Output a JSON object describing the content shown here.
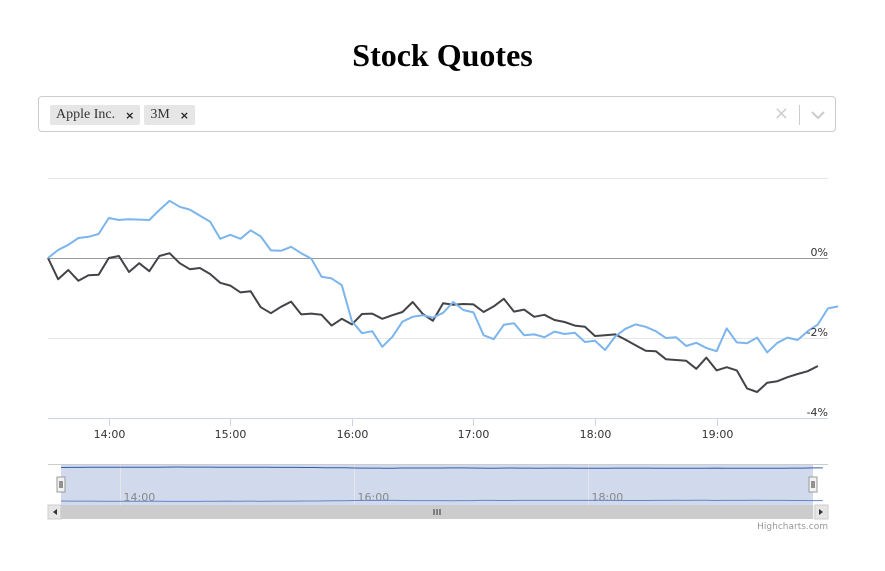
{
  "page": {
    "title": "Stock Quotes"
  },
  "ticker_select": {
    "selected": [
      {
        "label": "Apple Inc.",
        "remove_glyph": "×"
      },
      {
        "label": "3M",
        "remove_glyph": "×"
      }
    ],
    "clear_glyph": "×",
    "icons": {
      "clear": "close-icon",
      "dropdown": "chevron-down-icon",
      "remove": "close-icon"
    }
  },
  "credits": "Highcharts.com",
  "navigator": {
    "labels": [
      "14:00",
      "16:00",
      "18:00"
    ],
    "handle_glyph": "||",
    "scrollbar_grip_glyph": "III"
  },
  "chart_data": {
    "type": "line",
    "y_unit": "%",
    "ylim": [
      -4,
      2
    ],
    "y_ticks": [
      0,
      -2,
      -4
    ],
    "y_tick_labels": [
      "0%",
      "-2%",
      "-4%"
    ],
    "x_ticks": [
      "14:00",
      "15:00",
      "16:00",
      "17:00",
      "18:00",
      "19:00"
    ],
    "xlim": [
      "13:30",
      "19:55"
    ],
    "x_step_minutes": 5,
    "grid": true,
    "colors": {
      "apple": "#7cb5ec",
      "mmm": "#434348"
    },
    "series": [
      {
        "key": "apple",
        "x_start": "13:30",
        "values": [
          0.0,
          0.2,
          0.33,
          0.5,
          0.53,
          0.6,
          1.0,
          0.95,
          0.97,
          0.96,
          0.95,
          1.2,
          1.43,
          1.28,
          1.21,
          1.06,
          0.91,
          0.48,
          0.58,
          0.48,
          0.69,
          0.54,
          0.19,
          0.18,
          0.28,
          0.12,
          -0.02,
          -0.47,
          -0.51,
          -0.68,
          -1.58,
          -1.88,
          -1.83,
          -2.22,
          -1.97,
          -1.59,
          -1.47,
          -1.43,
          -1.49,
          -1.37,
          -1.1,
          -1.3,
          -1.36,
          -1.93,
          -2.03,
          -1.67,
          -1.63,
          -1.93,
          -1.91,
          -1.98,
          -1.84,
          -1.9,
          -1.87,
          -2.1,
          -2.07,
          -2.3,
          -1.96,
          -1.77,
          -1.66,
          -1.72,
          -1.83,
          -2.0,
          -1.98,
          -2.2,
          -2.12,
          -2.25,
          -2.33,
          -1.76,
          -2.11,
          -2.13,
          -1.99,
          -2.36,
          -2.12,
          -1.99,
          -2.05,
          -1.83,
          -1.66,
          -1.26,
          -1.21
        ]
      },
      {
        "key": "mmm",
        "x_start": "13:30",
        "values": [
          0.0,
          -0.53,
          -0.3,
          -0.57,
          -0.43,
          -0.42,
          0.0,
          0.05,
          -0.35,
          -0.13,
          -0.33,
          0.05,
          0.12,
          -0.13,
          -0.28,
          -0.25,
          -0.4,
          -0.62,
          -0.69,
          -0.86,
          -0.83,
          -1.23,
          -1.38,
          -1.22,
          -1.09,
          -1.41,
          -1.39,
          -1.42,
          -1.69,
          -1.52,
          -1.66,
          -1.4,
          -1.39,
          -1.52,
          -1.43,
          -1.35,
          -1.1,
          -1.4,
          -1.57,
          -1.13,
          -1.17,
          -1.15,
          -1.16,
          -1.35,
          -1.21,
          -1.02,
          -1.34,
          -1.29,
          -1.47,
          -1.42,
          -1.55,
          -1.6,
          -1.69,
          -1.72,
          -1.95,
          -1.93,
          -1.91,
          -2.04,
          -2.18,
          -2.32,
          -2.33,
          -2.53,
          -2.55,
          -2.57,
          -2.77,
          -2.49,
          -2.81,
          -2.73,
          -2.81,
          -3.26,
          -3.35,
          -3.12,
          -3.08,
          -2.98,
          -2.9,
          -2.83,
          -2.7
        ]
      }
    ]
  }
}
